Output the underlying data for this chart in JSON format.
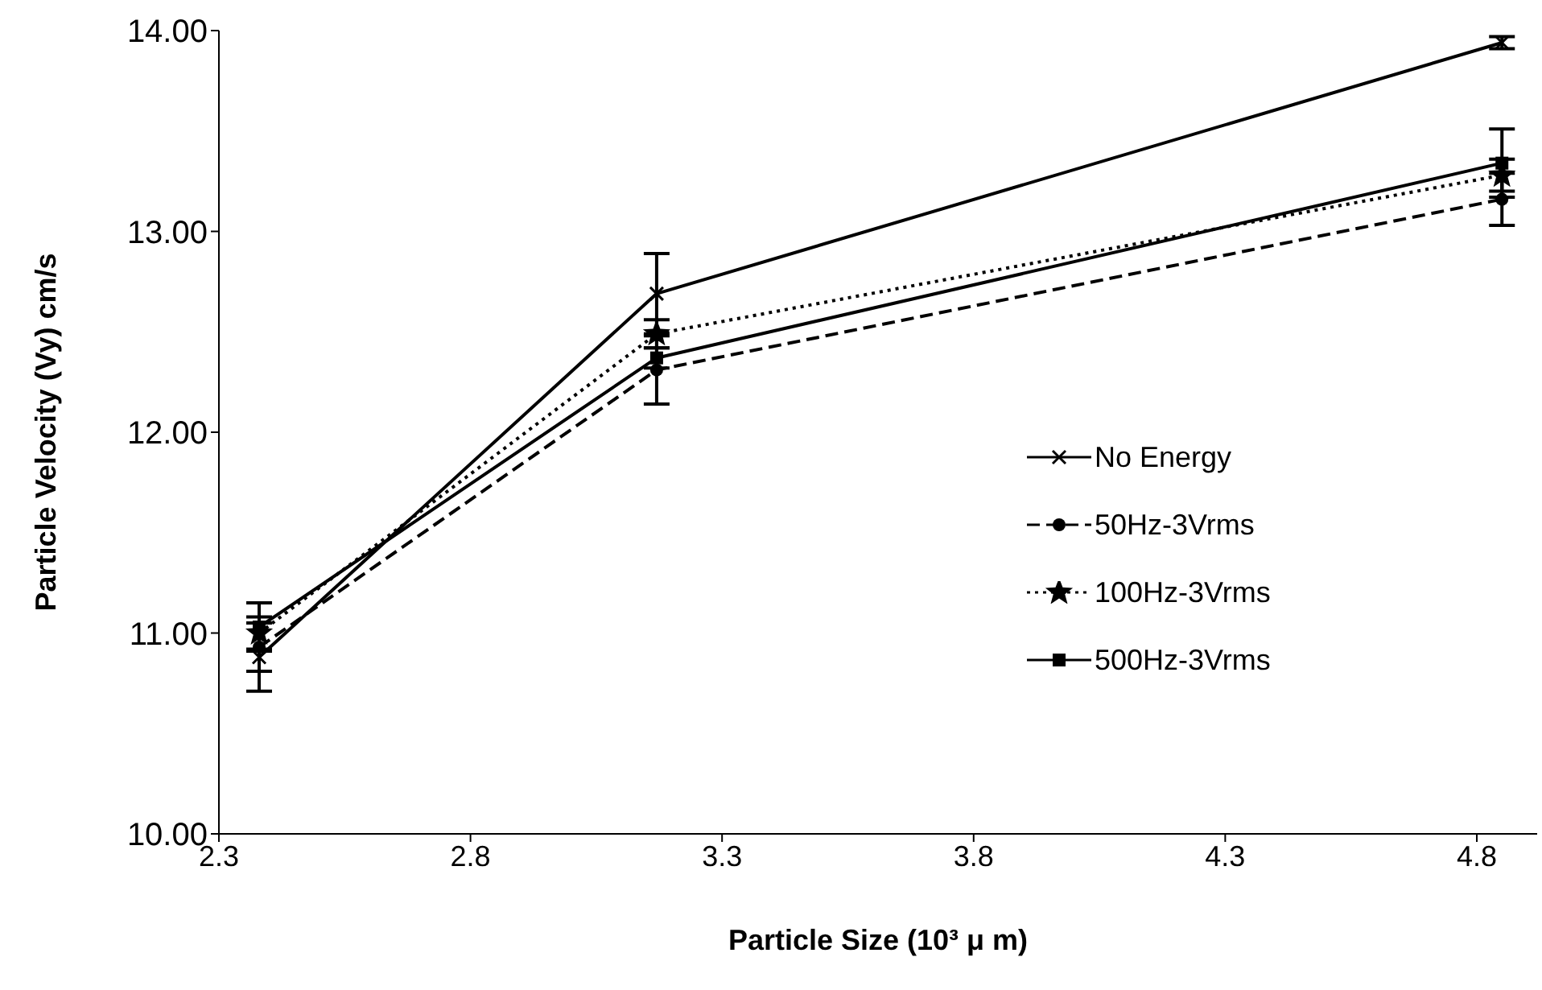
{
  "chart_data": {
    "type": "line",
    "xlabel": "Particle Size (10³ μ m)",
    "ylabel": "Particle Velocity (Vy) cm/s",
    "x": [
      2.38,
      3.17,
      4.85
    ],
    "xlim": [
      2.3,
      4.92
    ],
    "xticks": [
      2.3,
      2.8,
      3.3,
      3.8,
      4.3,
      4.8
    ],
    "ylim": [
      10,
      14
    ],
    "yticks": [
      {
        "value": 10,
        "label": "10.00"
      },
      {
        "value": 11,
        "label": "11.00"
      },
      {
        "value": 12,
        "label": "12.00"
      },
      {
        "value": 13,
        "label": "13.00"
      },
      {
        "value": 14,
        "label": "14.00"
      }
    ],
    "grid": false,
    "legend": "right",
    "series": [
      {
        "name": "No Energy",
        "color": "#000000",
        "values": [
          10.88,
          12.69,
          13.94
        ],
        "errors": [
          0.17,
          0.2,
          0.03
        ],
        "marker": "cross",
        "line_style": "solid"
      },
      {
        "name": "50Hz-3Vrms",
        "color": "#000000",
        "values": [
          10.93,
          12.31,
          13.16
        ],
        "errors": [
          0.12,
          0.17,
          0.13
        ],
        "marker": "circle",
        "line_style": "dashed"
      },
      {
        "name": "100Hz-3Vrms",
        "color": "#000000",
        "values": [
          11.0,
          12.49,
          13.28
        ],
        "errors": [
          0.08,
          0.07,
          0.08
        ],
        "marker": "star",
        "line_style": "dotted"
      },
      {
        "name": "500Hz-3Vrms",
        "color": "#000000",
        "values": [
          11.03,
          12.37,
          13.34
        ],
        "errors": [
          0.12,
          0.05,
          0.17
        ],
        "marker": "square",
        "line_style": "solid"
      }
    ]
  }
}
